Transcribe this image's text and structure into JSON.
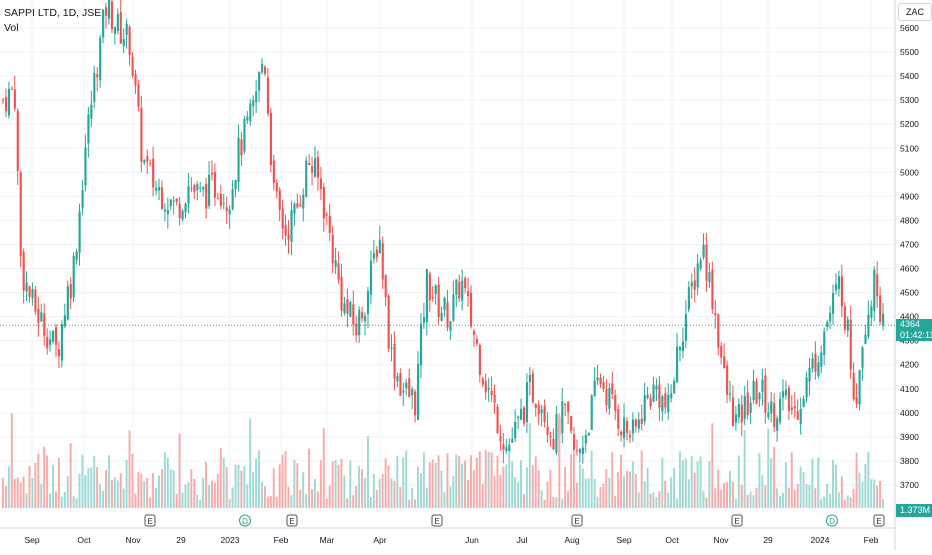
{
  "header": {
    "symbol_line": "SAPPI LTD, 1D, JSE",
    "volume_label": "Vol",
    "currency": "ZAC"
  },
  "last_price": {
    "value": "4364",
    "countdown": "01:42:11"
  },
  "volume_last": "1.373M",
  "colors": {
    "up": "#26a69a",
    "down": "#ef5350",
    "up_vol": "#9fd9d3",
    "down_vol": "#f7aaa9",
    "grid": "#f0f3fa",
    "axis_text": "#131722"
  },
  "chart_data": {
    "type": "candlestick",
    "y_axis": {
      "ticks": [
        3700,
        3800,
        3900,
        4000,
        4100,
        4200,
        4300,
        4400,
        4500,
        4600,
        4700,
        4800,
        4900,
        5000,
        5100,
        5200,
        5300,
        5400,
        5500,
        5600
      ]
    },
    "x_axis_labels": [
      "Sep",
      "Oct",
      "Nov",
      "29",
      "2023",
      "Feb",
      "Mar",
      "Apr",
      "Jun",
      "Jul",
      "Aug",
      "Sep",
      "Oct",
      "Nov",
      "29",
      "2024",
      "Feb"
    ],
    "event_markers": [
      "E",
      "D",
      "E",
      "E",
      "E",
      "E",
      "D",
      "E"
    ],
    "close_series": [
      {
        "d": "2022-08-25",
        "c": 5300
      },
      {
        "d": "2022-09-01",
        "c": 5350
      },
      {
        "d": "2022-09-05",
        "c": 4600
      },
      {
        "d": "2022-09-12",
        "c": 4450
      },
      {
        "d": "2022-09-20",
        "c": 4350
      },
      {
        "d": "2022-09-27",
        "c": 4250
      },
      {
        "d": "2022-10-03",
        "c": 4500
      },
      {
        "d": "2022-10-06",
        "c": 4560
      },
      {
        "d": "2022-10-10",
        "c": 4800
      },
      {
        "d": "2022-10-14",
        "c": 5100
      },
      {
        "d": "2022-10-20",
        "c": 5400
      },
      {
        "d": "2022-10-27",
        "c": 5700
      },
      {
        "d": "2022-11-03",
        "c": 5600
      },
      {
        "d": "2022-11-10",
        "c": 5550
      },
      {
        "d": "2022-11-18",
        "c": 5050
      },
      {
        "d": "2022-11-25",
        "c": 4950
      },
      {
        "d": "2022-12-02",
        "c": 4900
      },
      {
        "d": "2022-12-09",
        "c": 4850
      },
      {
        "d": "2022-12-16",
        "c": 4950
      },
      {
        "d": "2022-12-23",
        "c": 4900
      },
      {
        "d": "2023-01-03",
        "c": 4950
      },
      {
        "d": "2023-01-09",
        "c": 4880
      },
      {
        "d": "2023-01-16",
        "c": 5100
      },
      {
        "d": "2023-01-24",
        "c": 5250
      },
      {
        "d": "2023-01-31",
        "c": 5500
      },
      {
        "d": "2023-02-06",
        "c": 4900
      },
      {
        "d": "2023-02-13",
        "c": 4750
      },
      {
        "d": "2023-02-20",
        "c": 4850
      },
      {
        "d": "2023-02-27",
        "c": 5050
      },
      {
        "d": "2023-03-06",
        "c": 4950
      },
      {
        "d": "2023-03-13",
        "c": 4700
      },
      {
        "d": "2023-03-20",
        "c": 4450
      },
      {
        "d": "2023-03-28",
        "c": 4350
      },
      {
        "d": "2023-04-04",
        "c": 4500
      },
      {
        "d": "2023-04-11",
        "c": 4750
      },
      {
        "d": "2023-04-18",
        "c": 4250
      },
      {
        "d": "2023-04-25",
        "c": 4100
      },
      {
        "d": "2023-05-03",
        "c": 4050
      },
      {
        "d": "2023-05-10",
        "c": 4550
      },
      {
        "d": "2023-05-17",
        "c": 4450
      },
      {
        "d": "2023-05-24",
        "c": 4400
      },
      {
        "d": "2023-05-31",
        "c": 4550
      },
      {
        "d": "2023-06-07",
        "c": 4350
      },
      {
        "d": "2023-06-14",
        "c": 4150
      },
      {
        "d": "2023-06-21",
        "c": 4000
      },
      {
        "d": "2023-06-28",
        "c": 3850
      },
      {
        "d": "2023-07-05",
        "c": 3950
      },
      {
        "d": "2023-07-12",
        "c": 4100
      },
      {
        "d": "2023-07-19",
        "c": 4050
      },
      {
        "d": "2023-07-26",
        "c": 3900
      },
      {
        "d": "2023-08-02",
        "c": 4000
      },
      {
        "d": "2023-08-09",
        "c": 3800
      },
      {
        "d": "2023-08-16",
        "c": 3950
      },
      {
        "d": "2023-08-23",
        "c": 4150
      },
      {
        "d": "2023-08-30",
        "c": 4050
      },
      {
        "d": "2023-09-06",
        "c": 3950
      },
      {
        "d": "2023-09-13",
        "c": 3900
      },
      {
        "d": "2023-09-20",
        "c": 4050
      },
      {
        "d": "2023-09-27",
        "c": 4100
      },
      {
        "d": "2023-10-04",
        "c": 4000
      },
      {
        "d": "2023-10-11",
        "c": 4300
      },
      {
        "d": "2023-10-18",
        "c": 4500
      },
      {
        "d": "2023-10-25",
        "c": 4700
      },
      {
        "d": "2023-11-01",
        "c": 4450
      },
      {
        "d": "2023-11-08",
        "c": 4100
      },
      {
        "d": "2023-11-15",
        "c": 3950
      },
      {
        "d": "2023-11-22",
        "c": 4050
      },
      {
        "d": "2023-11-29",
        "c": 4100
      },
      {
        "d": "2023-12-06",
        "c": 4000
      },
      {
        "d": "2023-12-13",
        "c": 4050
      },
      {
        "d": "2023-12-20",
        "c": 4000
      },
      {
        "d": "2024-01-03",
        "c": 4250
      },
      {
        "d": "2024-01-10",
        "c": 4400
      },
      {
        "d": "2024-01-17",
        "c": 4550
      },
      {
        "d": "2024-01-22",
        "c": 4300
      },
      {
        "d": "2024-01-26",
        "c": 4050
      },
      {
        "d": "2024-01-31",
        "c": 4350
      },
      {
        "d": "2024-02-05",
        "c": 4500
      },
      {
        "d": "2024-02-08",
        "c": 4550
      },
      {
        "d": "2024-02-12",
        "c": 4364
      }
    ]
  }
}
